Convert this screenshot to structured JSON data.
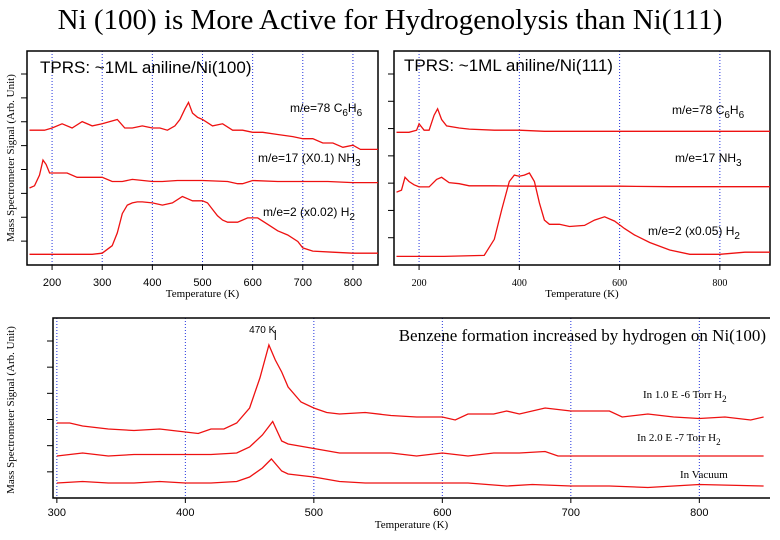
{
  "title": "Ni (100) is More Active for Hydrogenolysis than Ni(111)",
  "chart_data": [
    {
      "type": "line",
      "title": "TPRS: ~1ML  aniline/Ni(100)",
      "xlabel": "Temperature (K)",
      "ylabel": "Mass Spectrometer Signal (Arb. Unit)",
      "xlim": [
        150,
        850
      ],
      "ylim": [
        0,
        10
      ],
      "xticks": [
        200,
        300,
        400,
        500,
        600,
        700,
        800
      ],
      "grid": "vertical dotted at x ticks",
      "series": [
        {
          "name": "m/e=78 C6H6",
          "label_main": "m/e=78 C",
          "sub1": "6",
          "mid": "H",
          "sub2": "6",
          "x": [
            155,
            185,
            200,
            220,
            240,
            260,
            280,
            300,
            315,
            330,
            345,
            360,
            380,
            400,
            415,
            430,
            445,
            455,
            465,
            472,
            480,
            490,
            500,
            520,
            540,
            560,
            580,
            600,
            620,
            650,
            680,
            700,
            720,
            740,
            760,
            780,
            800,
            815,
            830,
            850
          ],
          "y": [
            6.3,
            6.3,
            6.4,
            6.6,
            6.4,
            6.7,
            6.5,
            6.6,
            6.7,
            6.8,
            6.4,
            6.4,
            6.5,
            6.4,
            6.4,
            6.3,
            6.5,
            6.8,
            7.3,
            7.6,
            7.1,
            6.9,
            6.8,
            6.5,
            6.6,
            6.3,
            6.3,
            6.2,
            6.2,
            6.1,
            6.0,
            5.9,
            5.9,
            5.7,
            5.7,
            5.5,
            5.6,
            5.4,
            5.4,
            5.4
          ]
        },
        {
          "name": "m/e=17 (X0.1) NH3",
          "label_main": "m/e=17 (X0.1) NH",
          "sub1": "3",
          "mid": "",
          "sub2": "",
          "x": [
            155,
            165,
            175,
            182,
            188,
            195,
            200,
            230,
            250,
            280,
            300,
            320,
            340,
            360,
            400,
            420,
            450,
            500,
            550,
            570,
            580,
            600,
            650,
            700,
            750,
            800,
            850
          ],
          "y": [
            3.6,
            3.7,
            4.2,
            4.9,
            4.7,
            4.3,
            4.3,
            4.3,
            4.1,
            4.1,
            4.1,
            3.9,
            3.9,
            4.0,
            3.9,
            3.9,
            3.95,
            3.95,
            3.9,
            3.8,
            3.8,
            3.95,
            3.9,
            3.9,
            3.9,
            3.85,
            3.85
          ]
        },
        {
          "name": "m/e=2 (x0.02) H2",
          "label_main": "m/e=2 (x0.02)  H",
          "sub1": "2",
          "mid": "",
          "sub2": "",
          "x": [
            155,
            200,
            240,
            280,
            300,
            320,
            330,
            340,
            350,
            360,
            370,
            380,
            400,
            420,
            440,
            460,
            470,
            480,
            500,
            510,
            520,
            530,
            540,
            550,
            570,
            590,
            610,
            630,
            650,
            670,
            690,
            700,
            720,
            760,
            800,
            850
          ],
          "y": [
            0.5,
            0.5,
            0.5,
            0.5,
            0.55,
            0.9,
            1.5,
            2.4,
            2.8,
            2.9,
            2.95,
            2.95,
            2.9,
            2.8,
            2.9,
            3.2,
            3.1,
            3.0,
            3.0,
            2.9,
            2.6,
            2.3,
            2.1,
            2.0,
            2.0,
            2.2,
            2.2,
            1.9,
            1.6,
            1.4,
            1.1,
            0.8,
            0.65,
            0.6,
            0.55,
            0.55
          ]
        }
      ]
    },
    {
      "type": "line",
      "title": "TPRS: ~1ML  aniline/Ni(111)",
      "xlabel": "Temperature (K)",
      "ylabel": "",
      "xlim": [
        150,
        900
      ],
      "ylim": [
        0,
        10
      ],
      "xticks": [
        200,
        400,
        600,
        800
      ],
      "grid": "vertical dotted at x ticks",
      "series": [
        {
          "name": "m/e=78 C6H6",
          "label_main": "m/e=78 C",
          "sub1": "6",
          "mid": "H",
          "sub2": "6",
          "x": [
            155,
            180,
            195,
            200,
            210,
            220,
            230,
            237,
            245,
            255,
            280,
            300,
            350,
            400,
            450,
            500,
            600,
            700,
            800,
            900
          ],
          "y": [
            6.2,
            6.2,
            6.3,
            6.6,
            6.3,
            6.3,
            7.0,
            7.3,
            6.8,
            6.5,
            6.4,
            6.35,
            6.3,
            6.3,
            6.25,
            6.25,
            6.25,
            6.25,
            6.25,
            6.25
          ]
        },
        {
          "name": "m/e=17 NH3",
          "label_main": "m/e=17  NH",
          "sub1": "3",
          "mid": "",
          "sub2": "",
          "x": [
            155,
            165,
            172,
            180,
            190,
            200,
            220,
            235,
            245,
            260,
            280,
            300,
            350,
            400,
            500,
            600,
            700,
            800,
            900
          ],
          "y": [
            3.4,
            3.5,
            4.1,
            3.9,
            3.75,
            3.65,
            3.65,
            4.0,
            4.1,
            3.85,
            3.8,
            3.7,
            3.7,
            3.68,
            3.68,
            3.68,
            3.66,
            3.66,
            3.66
          ]
        },
        {
          "name": "m/e=2 (x0.05) H2",
          "label_main": "m/e=2 (x0.05)  H",
          "sub1": "2",
          "mid": "",
          "sub2": "",
          "x": [
            155,
            250,
            330,
            350,
            365,
            380,
            390,
            400,
            410,
            420,
            430,
            440,
            450,
            460,
            480,
            500,
            530,
            550,
            570,
            590,
            610,
            630,
            660,
            700,
            740,
            800,
            850,
            900
          ],
          "y": [
            0.4,
            0.4,
            0.45,
            1.2,
            2.6,
            3.9,
            4.2,
            4.15,
            4.2,
            4.3,
            3.9,
            2.9,
            2.1,
            1.9,
            1.9,
            1.8,
            1.85,
            2.1,
            2.25,
            2.05,
            1.7,
            1.4,
            1.05,
            0.7,
            0.5,
            0.5,
            0.6,
            0.6
          ]
        }
      ]
    },
    {
      "type": "line",
      "title": "Benzene formation increased by hydrogen on Ni(100)",
      "xlabel": "Temperature (K)",
      "ylabel": "Mass Spectrometer Signal (Arb. Unit)",
      "xlim": [
        297,
        855
      ],
      "ylim": [
        0,
        6
      ],
      "xticks": [
        300,
        400,
        500,
        600,
        700,
        800
      ],
      "grid": "vertical dotted at x ticks",
      "annotation": "470 K",
      "series": [
        {
          "name": "In 1.0 E-6 Torr H2",
          "label_main": "In 1.0 E -6 Torr H",
          "sub1": "2",
          "mid": "",
          "sub2": "",
          "x": [
            300,
            310,
            320,
            340,
            360,
            380,
            400,
            410,
            420,
            430,
            440,
            450,
            458,
            465,
            470,
            475,
            480,
            490,
            500,
            510,
            520,
            540,
            560,
            580,
            600,
            610,
            620,
            640,
            650,
            660,
            680,
            700,
            730,
            740,
            760,
            780,
            800,
            820,
            840,
            850
          ],
          "y": [
            2.5,
            2.5,
            2.4,
            2.3,
            2.25,
            2.3,
            2.2,
            2.15,
            2.3,
            2.3,
            2.5,
            3.0,
            4.0,
            5.1,
            4.6,
            4.2,
            3.7,
            3.2,
            3.0,
            2.85,
            2.8,
            2.85,
            2.75,
            2.7,
            2.7,
            2.6,
            2.8,
            2.8,
            2.9,
            2.8,
            3.0,
            2.9,
            2.9,
            2.7,
            2.8,
            2.7,
            2.65,
            2.7,
            2.6,
            2.7
          ]
        },
        {
          "name": "In 2.0 E-7 Torr H2",
          "label_main": "In 2.0 E -7 Torr H",
          "sub1": "2",
          "mid": "",
          "sub2": "",
          "x": [
            300,
            320,
            340,
            360,
            380,
            400,
            420,
            440,
            450,
            460,
            468,
            475,
            480,
            500,
            520,
            540,
            560,
            580,
            600,
            620,
            640,
            660,
            680,
            690,
            700,
            750,
            800,
            850
          ],
          "y": [
            1.4,
            1.5,
            1.4,
            1.45,
            1.45,
            1.45,
            1.45,
            1.5,
            1.7,
            2.1,
            2.55,
            1.9,
            1.8,
            1.65,
            1.5,
            1.5,
            1.5,
            1.4,
            1.5,
            1.4,
            1.5,
            1.5,
            1.55,
            1.4,
            1.4,
            1.4,
            1.4,
            1.4
          ]
        },
        {
          "name": "In Vacuum",
          "label_main": "In Vacuum",
          "sub1": "",
          "mid": "",
          "sub2": "",
          "x": [
            300,
            320,
            340,
            360,
            380,
            400,
            420,
            440,
            450,
            460,
            467,
            475,
            480,
            500,
            520,
            540,
            560,
            580,
            600,
            620,
            650,
            670,
            700,
            730,
            760,
            780,
            800,
            850
          ],
          "y": [
            0.5,
            0.55,
            0.5,
            0.5,
            0.55,
            0.5,
            0.5,
            0.55,
            0.7,
            1.0,
            1.3,
            0.9,
            0.8,
            0.7,
            0.55,
            0.5,
            0.5,
            0.5,
            0.5,
            0.5,
            0.4,
            0.45,
            0.4,
            0.4,
            0.35,
            0.4,
            0.45,
            0.4
          ]
        }
      ]
    }
  ]
}
